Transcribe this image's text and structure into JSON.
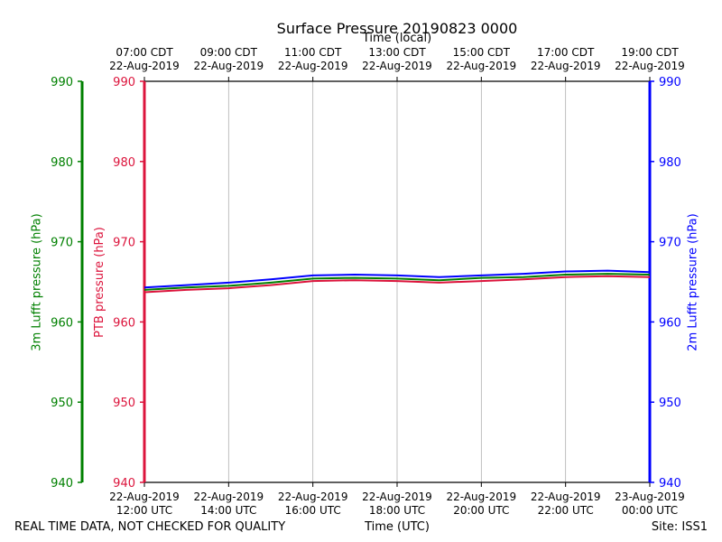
{
  "chart_data": {
    "type": "line",
    "title": "Surface Pressure 20190823 0000",
    "xlabel_bottom": "Time (UTC)",
    "xlabel_top": "Time (local)",
    "bottom_ticks": [
      [
        "22-Aug-2019",
        "12:00 UTC"
      ],
      [
        "22-Aug-2019",
        "14:00 UTC"
      ],
      [
        "22-Aug-2019",
        "16:00 UTC"
      ],
      [
        "22-Aug-2019",
        "18:00 UTC"
      ],
      [
        "22-Aug-2019",
        "20:00 UTC"
      ],
      [
        "22-Aug-2019",
        "22:00 UTC"
      ],
      [
        "23-Aug-2019",
        "00:00 UTC"
      ]
    ],
    "top_ticks": [
      [
        "07:00 CDT",
        "22-Aug-2019"
      ],
      [
        "09:00 CDT",
        "22-Aug-2019"
      ],
      [
        "11:00 CDT",
        "22-Aug-2019"
      ],
      [
        "13:00 CDT",
        "22-Aug-2019"
      ],
      [
        "15:00 CDT",
        "22-Aug-2019"
      ],
      [
        "17:00 CDT",
        "22-Aug-2019"
      ],
      [
        "19:00 CDT",
        "22-Aug-2019"
      ]
    ],
    "x": [
      "2019-08-22 12:00",
      "2019-08-22 13:00",
      "2019-08-22 14:00",
      "2019-08-22 15:00",
      "2019-08-22 16:00",
      "2019-08-22 17:00",
      "2019-08-22 18:00",
      "2019-08-22 19:00",
      "2019-08-22 20:00",
      "2019-08-22 21:00",
      "2019-08-22 22:00",
      "2019-08-22 23:00",
      "2019-08-23 00:00"
    ],
    "xlim": [
      "2019-08-22 12:00",
      "2019-08-23 00:00"
    ],
    "ylim": [
      940,
      990
    ],
    "yticks": [
      940,
      950,
      960,
      970,
      980,
      990
    ],
    "grid": "vertical",
    "axes": {
      "left_outer": {
        "label": "3m Lufft pressure (hPa)",
        "color": "#008000"
      },
      "left_inner": {
        "label": "PTB pressure (hPa)",
        "color": "#dc143c"
      },
      "right": {
        "label": "2m Lufft pressure (hPa)",
        "color": "#0000ff"
      }
    },
    "series": [
      {
        "axis": "left_outer",
        "color": "#008000",
        "values": [
          964.0,
          964.3,
          964.5,
          964.9,
          965.4,
          965.5,
          965.4,
          965.2,
          965.5,
          965.6,
          965.9,
          966.0,
          965.9
        ]
      },
      {
        "axis": "left_inner",
        "color": "#dc143c",
        "values": [
          963.7,
          964.0,
          964.2,
          964.6,
          965.1,
          965.2,
          965.1,
          964.9,
          965.1,
          965.3,
          965.6,
          965.7,
          965.6
        ]
      },
      {
        "axis": "right",
        "color": "#0000ff",
        "values": [
          964.3,
          964.6,
          964.9,
          965.3,
          965.8,
          965.9,
          965.8,
          965.6,
          965.8,
          966.0,
          966.3,
          966.4,
          966.2
        ]
      }
    ]
  },
  "footer": {
    "left": "REAL TIME DATA, NOT CHECKED FOR QUALITY",
    "right": "Site: ISS1"
  }
}
